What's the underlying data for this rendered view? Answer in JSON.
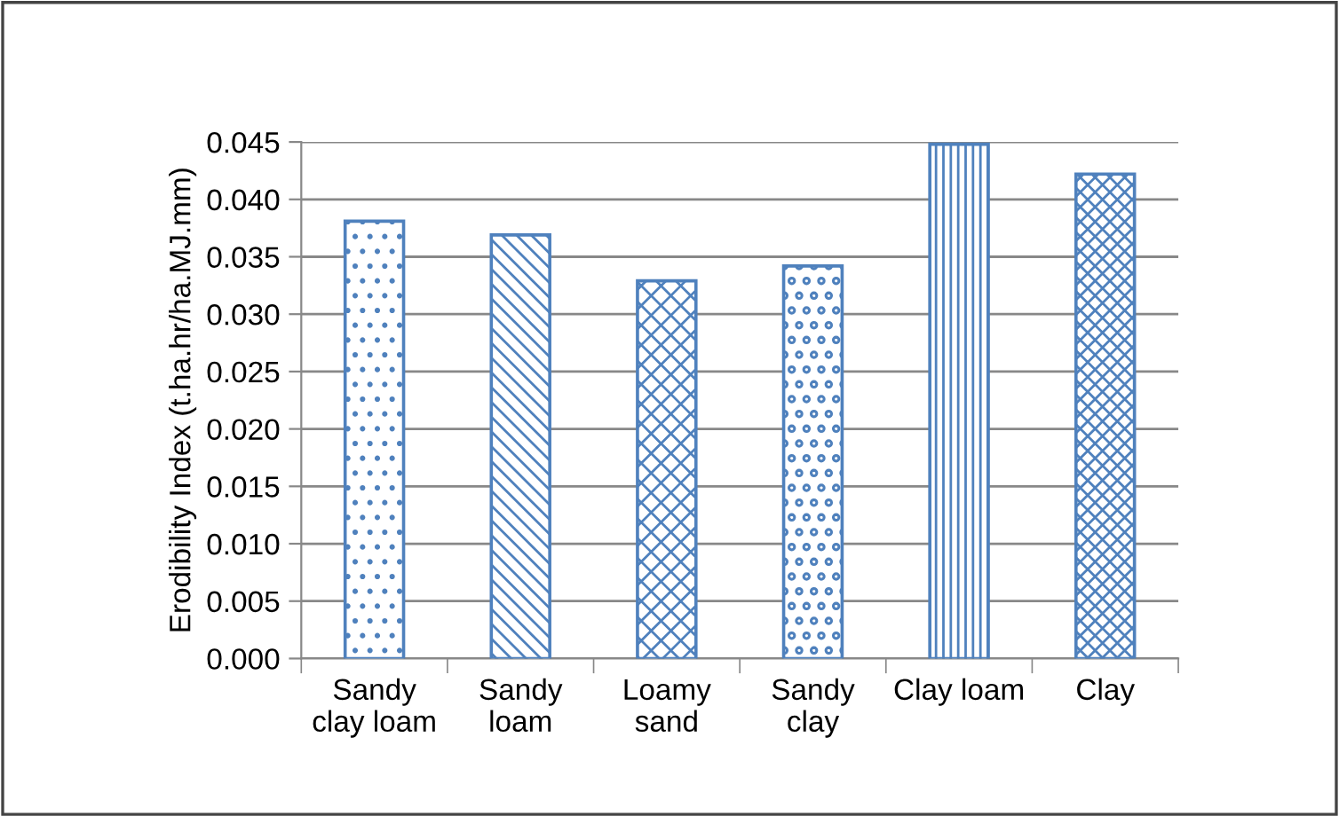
{
  "chart_data": {
    "type": "bar",
    "ylabel": "Erodibility Index (t.ha.hr/ha.MJ.mm)",
    "categories": [
      "Sandy\nclay loam",
      "Sandy\nloam",
      "Loamy\nsand",
      "Sandy\nclay",
      "Clay loam",
      "Clay"
    ],
    "values": [
      0.0381,
      0.0369,
      0.0329,
      0.0342,
      0.0448,
      0.0422
    ],
    "color": "#4f81bd",
    "ylim": [
      0,
      0.045
    ],
    "yticks": [
      {
        "value": 0,
        "label": "0.000"
      },
      {
        "value": 0.005,
        "label": "0.005"
      },
      {
        "value": 0.01,
        "label": "0.010"
      },
      {
        "value": 0.015,
        "label": "0.015"
      },
      {
        "value": 0.02,
        "label": "0.020"
      },
      {
        "value": 0.025,
        "label": "0.025"
      },
      {
        "value": 0.03,
        "label": "0.030"
      },
      {
        "value": 0.035,
        "label": "0.035"
      },
      {
        "value": 0.04,
        "label": "0.040"
      },
      {
        "value": 0.045,
        "label": "0.045"
      }
    ],
    "grid": "y"
  }
}
